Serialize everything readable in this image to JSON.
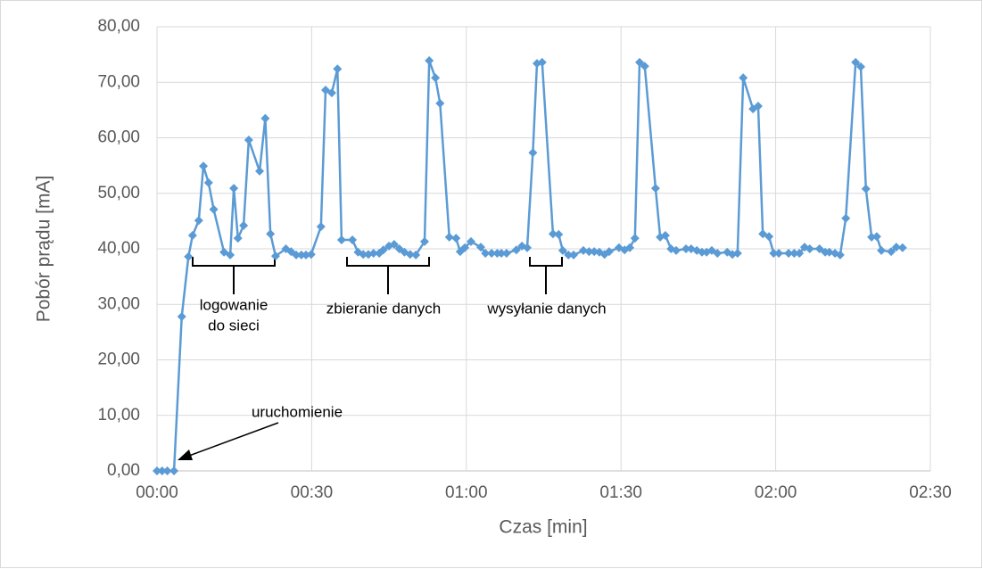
{
  "chart_data": {
    "type": "line",
    "x_label": "Czas [min]",
    "y_label": "Pobór prądu [mA]",
    "xlim": [
      0,
      150
    ],
    "xticks": [
      {
        "value": 0,
        "label": "00:00"
      },
      {
        "value": 30,
        "label": "00:30"
      },
      {
        "value": 60,
        "label": "01:00"
      },
      {
        "value": 90,
        "label": "01:30"
      },
      {
        "value": 120,
        "label": "02:00"
      },
      {
        "value": 150,
        "label": "02:30"
      }
    ],
    "ylim": [
      0,
      80
    ],
    "yticks": [
      {
        "value": 0,
        "label": "0,00"
      },
      {
        "value": 10,
        "label": "10,00"
      },
      {
        "value": 20,
        "label": "20,00"
      },
      {
        "value": 30,
        "label": "30,00"
      },
      {
        "value": 40,
        "label": "40,00"
      },
      {
        "value": 50,
        "label": "50,00"
      },
      {
        "value": 60,
        "label": "60,00"
      },
      {
        "value": 70,
        "label": "70,00"
      },
      {
        "value": 80,
        "label": "80,00"
      }
    ],
    "grid": true,
    "color": "#5b9bd5",
    "x": [
      0,
      1,
      2,
      3.3,
      4.8,
      6.1,
      6.9,
      8.1,
      9,
      10,
      11,
      13,
      14.2,
      14.9,
      15.7,
      16.8,
      17.8,
      19.9,
      21,
      22,
      23,
      25,
      26,
      27,
      28,
      28.9,
      29.9,
      31.8,
      32.7,
      33.9,
      35,
      35.8,
      37.9,
      39,
      40,
      41,
      42,
      43.1,
      43.9,
      45,
      46,
      47,
      48,
      49.1,
      50.2,
      51.9,
      52.8,
      54,
      54.9,
      56.7,
      58,
      58.8,
      59.7,
      60.9,
      62.8,
      63.7,
      64.9,
      66,
      66.8,
      67.8,
      69.7,
      70.8,
      71.8,
      72.9,
      73.7,
      74.7,
      76.8,
      77.9,
      78.7,
      79.8,
      80.8,
      82.7,
      83.8,
      84.8,
      85.8,
      86.8,
      87.7,
      89.6,
      90.7,
      91.7,
      92.7,
      93.6,
      94.6,
      96.7,
      97.6,
      98.6,
      99.7,
      100.7,
      102.6,
      103.6,
      104.7,
      105.7,
      106.6,
      107.6,
      108.7,
      110.6,
      111.6,
      112.6,
      113.7,
      115.6,
      116.6,
      117.5,
      118.7,
      119.6,
      120.6,
      122.5,
      123.6,
      124.6,
      125.6,
      126.6,
      128.5,
      129.6,
      130.4,
      131.5,
      132.5,
      133.6,
      135.5,
      136.5,
      137.5,
      138.6,
      139.6,
      140.5,
      142.4,
      143.4,
      144.6
    ],
    "values": [
      0,
      0,
      0,
      0,
      27.8,
      38.6,
      42.4,
      45.1,
      54.9,
      51.9,
      47.1,
      39.4,
      38.9,
      50.9,
      41.9,
      44.2,
      59.6,
      54,
      63.5,
      42.7,
      38.7,
      40,
      39.5,
      38.9,
      38.9,
      38.9,
      39,
      44,
      68.6,
      68.1,
      72.4,
      41.6,
      41.6,
      39.4,
      39,
      39,
      39.2,
      39.2,
      39.8,
      40.5,
      40.8,
      40,
      39.4,
      39,
      38.9,
      41.3,
      73.9,
      70.8,
      66.2,
      42.1,
      41.9,
      39.5,
      40.2,
      41.3,
      40.3,
      39.2,
      39.2,
      39.2,
      39.2,
      39.2,
      39.8,
      40.5,
      40.2,
      57.3,
      73.4,
      73.6,
      42.7,
      42.6,
      39.7,
      38.9,
      38.9,
      39.7,
      39.5,
      39.5,
      39.4,
      39,
      39.5,
      40.2,
      39.8,
      40.2,
      41.9,
      73.6,
      72.9,
      50.9,
      42.1,
      42.4,
      40,
      39.7,
      40,
      40,
      39.7,
      39.4,
      39.4,
      39.7,
      39.2,
      39.4,
      39,
      39.2,
      70.8,
      65.2,
      65.7,
      42.7,
      42.2,
      39.2,
      39.2,
      39.2,
      39.2,
      39.2,
      40.3,
      40,
      40,
      39.4,
      39.4,
      39.2,
      38.9,
      45.5,
      73.6,
      72.8,
      50.8,
      42.1,
      42.2,
      39.7,
      39.5,
      40.3,
      40.2
    ],
    "annotations": [
      {
        "lines": [
          "logowanie",
          "do sieci"
        ]
      },
      {
        "lines": [
          "zbieranie danych"
        ]
      },
      {
        "lines": [
          "wysyłanie danych"
        ]
      },
      {
        "lines": [
          "uruchomienie"
        ]
      }
    ]
  }
}
